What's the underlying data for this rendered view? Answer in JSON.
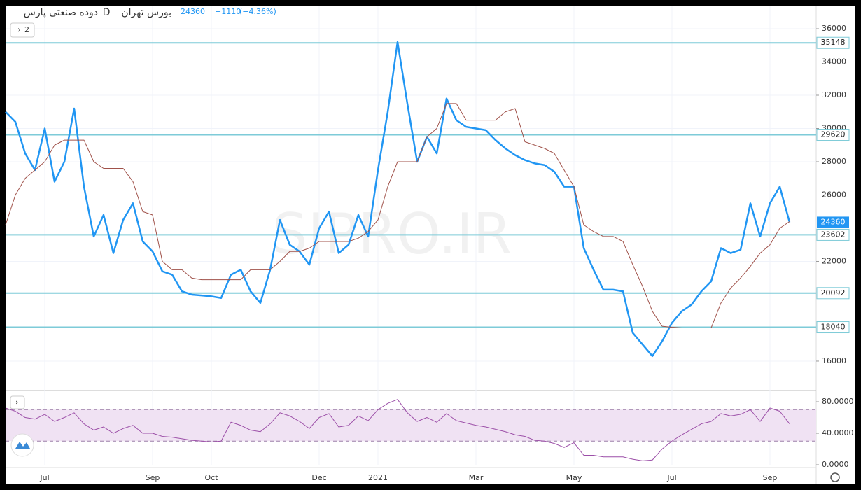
{
  "header": {
    "symbol": "دوده صنعتی پارس",
    "interval": "D",
    "exchange": "بورس تهران",
    "last": "24360",
    "change": "−1110",
    "change_pct": "(−4.36%)",
    "panes": "2",
    "watermark": "SIPRO.IR"
  },
  "chart_data": [
    {
      "type": "line",
      "categories": [
        null,
        null,
        null,
        null,
        "Jul",
        null,
        null,
        null,
        null,
        null,
        null,
        null,
        null,
        null,
        null,
        "Sep",
        null,
        null,
        null,
        null,
        null,
        "Oct",
        null,
        null,
        null,
        null,
        null,
        null,
        null,
        null,
        null,
        null,
        "Dec",
        null,
        null,
        null,
        null,
        null,
        "2021",
        null,
        null,
        null,
        null,
        null,
        null,
        null,
        null,
        null,
        "Mar",
        null,
        null,
        null,
        null,
        null,
        null,
        null,
        null,
        null,
        "May",
        null,
        null,
        null,
        null,
        null,
        null,
        null,
        null,
        null,
        "Jul",
        null,
        null,
        null,
        null,
        null,
        null,
        null,
        null,
        null,
        "Sep",
        null,
        null
      ],
      "series": [
        {
          "color": "#2196f3",
          "values": [
            31000,
            30400,
            28500,
            27500,
            30000,
            26800,
            28000,
            31200,
            26500,
            23500,
            24800,
            22500,
            24500,
            25500,
            23200,
            22600,
            21400,
            21200,
            20200,
            20000,
            19950,
            19900,
            19800,
            21200,
            21500,
            20200,
            19500,
            21500,
            24500,
            23000,
            22600,
            21800,
            24000,
            25000,
            22500,
            23000,
            24800,
            23500,
            27500,
            31000,
            35200,
            31500,
            28000,
            29500,
            28500,
            31800,
            30500,
            30100,
            30000,
            29900,
            29300,
            28800,
            28400,
            28100,
            27900,
            27800,
            27400,
            26500,
            26500,
            22800,
            21500,
            20300,
            20300,
            20200,
            17700,
            17000,
            16300,
            17200,
            18300,
            19000,
            19400,
            20200,
            20800,
            22800,
            22500,
            22700,
            25500,
            23500,
            25500,
            26500,
            24360
          ]
        },
        {
          "color": "#a0524a",
          "values": [
            24200,
            26000,
            27000,
            27500,
            28000,
            29000,
            29300,
            29300,
            29300,
            28000,
            27600,
            27600,
            27600,
            26800,
            25000,
            24800,
            22000,
            21500,
            21500,
            21000,
            20900,
            20900,
            20900,
            20900,
            20900,
            21500,
            21500,
            21500,
            22000,
            22600,
            22600,
            22800,
            23200,
            23200,
            23200,
            23200,
            23400,
            23800,
            24500,
            26500,
            28000,
            28000,
            28000,
            29500,
            30000,
            31500,
            31500,
            30500,
            30500,
            30500,
            30500,
            31000,
            31200,
            29200,
            29000,
            28800,
            28500,
            27500,
            26500,
            24200,
            23800,
            23500,
            23500,
            23200,
            21800,
            20500,
            19000,
            18100,
            18040,
            18000,
            18000,
            18000,
            18000,
            19500,
            20400,
            21000,
            21700,
            22500,
            23000,
            24000,
            24400
          ]
        }
      ],
      "levels": [
        35148,
        29620,
        23602,
        20092,
        18040
      ],
      "level_color": "#7ecbd8",
      "last_value": 24360,
      "ylim": [
        14230,
        37390
      ],
      "yticks": [
        16000,
        22000,
        26000,
        28000,
        30000,
        32000,
        34000,
        36000
      ],
      "grid": true
    },
    {
      "type": "line",
      "series": [
        {
          "color": "#9c4fa8",
          "values": [
            72,
            68,
            60,
            58,
            64,
            55,
            60,
            66,
            52,
            44,
            48,
            40,
            46,
            50,
            40,
            40,
            36,
            35,
            33,
            31,
            30,
            29,
            30,
            54,
            50,
            44,
            42,
            52,
            66,
            62,
            55,
            46,
            60,
            65,
            48,
            50,
            62,
            56,
            70,
            78,
            83,
            66,
            55,
            60,
            54,
            65,
            56,
            53,
            50,
            48,
            45,
            42,
            38,
            36,
            31,
            30,
            27,
            22,
            28,
            12,
            12,
            10,
            10,
            10,
            7,
            5,
            6,
            20,
            30,
            38,
            45,
            52,
            55,
            65,
            62,
            64,
            70,
            55,
            72,
            68,
            52
          ]
        }
      ],
      "levels": [
        70,
        30
      ],
      "band_color": "#f0e2f3",
      "ylim": [
        0,
        90.7
      ],
      "yticks": [
        {
          "value": 0,
          "label": "0.0000"
        },
        {
          "value": 40,
          "label": "40.0000"
        },
        {
          "value": 80,
          "label": "80.0000"
        }
      ]
    }
  ]
}
